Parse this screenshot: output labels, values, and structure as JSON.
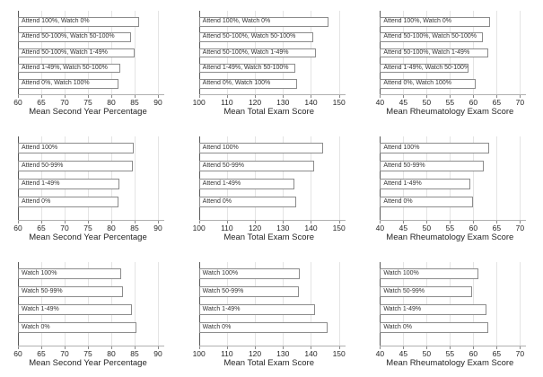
{
  "figure_title": "",
  "colors": {
    "background": "#ffffff",
    "bar_fill": "#ffffff",
    "bar_border": "#8c8c8c",
    "gridline": "#e4e4e4",
    "axis_y": "#595959",
    "axis_x": "#b0b0b0",
    "text": "#262626"
  },
  "chart_data": [
    {
      "type": "bar",
      "orientation": "horizontal",
      "xlabel": "Mean Second Year Percentage",
      "xlim": [
        60,
        90
      ],
      "ticks": [
        60,
        65,
        70,
        75,
        80,
        85,
        90
      ],
      "grid": true,
      "categories": [
        "Attend 100%, Watch 0%",
        "Attend 50-100%, Watch 50-100%",
        "Attend 50-100%, Watch 1-49%",
        "Attend 1-49%, Watch 50-100%",
        "Attend 0%, Watch 100%"
      ],
      "values": [
        86,
        84.3,
        85,
        82,
        81.6
      ]
    },
    {
      "type": "bar",
      "orientation": "horizontal",
      "xlabel": "Mean Total Exam Score",
      "xlim": [
        100,
        150
      ],
      "ticks": [
        100,
        110,
        120,
        130,
        140,
        150
      ],
      "grid": true,
      "categories": [
        "Attend 100%, Watch 0%",
        "Attend 50-100%, Watch 50-100%",
        "Attend 50-100%, Watch 1-49%",
        "Attend 1-49%, Watch 50-100%",
        "Attend 0%, Watch 100%"
      ],
      "values": [
        146.4,
        140.7,
        141.9,
        134.3,
        134.9
      ]
    },
    {
      "type": "bar",
      "orientation": "horizontal",
      "xlabel": "Mean Rheumatology Exam Score",
      "xlim": [
        40,
        70
      ],
      "ticks": [
        40,
        45,
        50,
        55,
        60,
        65,
        70
      ],
      "grid": true,
      "categories": [
        "Attend 100%, Watch 0%",
        "Attend 50-100%, Watch 50-100%",
        "Attend 50-100%, Watch 1-49%",
        "Attend 1-49%, Watch 50-100%",
        "Attend 0%, Watch 100%"
      ],
      "values": [
        63.5,
        62,
        63.3,
        59,
        60.5
      ]
    },
    {
      "type": "bar",
      "orientation": "horizontal",
      "xlabel": "Mean Second Year Percentage",
      "xlim": [
        60,
        90
      ],
      "ticks": [
        60,
        65,
        70,
        75,
        80,
        85,
        90
      ],
      "grid": true,
      "categories": [
        "Attend 100%",
        "Attend 50-99%",
        "Attend 1-49%",
        "Attend 0%"
      ],
      "values": [
        84.9,
        84.6,
        81.7,
        81.5
      ]
    },
    {
      "type": "bar",
      "orientation": "horizontal",
      "xlabel": "Mean Total Exam Score",
      "xlim": [
        100,
        150
      ],
      "ticks": [
        100,
        110,
        120,
        130,
        140,
        150
      ],
      "grid": true,
      "categories": [
        "Attend 100%",
        "Attend 50-99%",
        "Attend 1-49%",
        "Attend 0%"
      ],
      "values": [
        144.5,
        141,
        134,
        134.6
      ]
    },
    {
      "type": "bar",
      "orientation": "horizontal",
      "xlabel": "Mean Rheumatology Exam Score",
      "xlim": [
        40,
        70
      ],
      "ticks": [
        40,
        45,
        50,
        55,
        60,
        65,
        70
      ],
      "grid": true,
      "categories": [
        "Attend 100%",
        "Attend 50-99%",
        "Attend 1-49%",
        "Attend 0%"
      ],
      "values": [
        63.4,
        62.3,
        59.4,
        60
      ]
    },
    {
      "type": "bar",
      "orientation": "horizontal",
      "xlabel": "Mean Second Year Percentage",
      "xlim": [
        60,
        90
      ],
      "ticks": [
        60,
        65,
        70,
        75,
        80,
        85,
        90
      ],
      "grid": true,
      "categories": [
        "Watch 100%",
        "Watch 50-99%",
        "Watch 1-49%",
        "Watch 0%"
      ],
      "values": [
        82.1,
        82.5,
        84.5,
        85.4
      ]
    },
    {
      "type": "bar",
      "orientation": "horizontal",
      "xlabel": "Mean Total Exam Score",
      "xlim": [
        100,
        150
      ],
      "ticks": [
        100,
        110,
        120,
        130,
        140,
        150
      ],
      "grid": true,
      "categories": [
        "Watch 100%",
        "Watch 50-99%",
        "Watch 1-49%",
        "Watch 0%"
      ],
      "values": [
        136.1,
        135.8,
        141.3,
        146
      ]
    },
    {
      "type": "bar",
      "orientation": "horizontal",
      "xlabel": "Mean Rheumatology Exam Score",
      "xlim": [
        40,
        70
      ],
      "ticks": [
        40,
        45,
        50,
        55,
        60,
        65,
        70
      ],
      "grid": true,
      "categories": [
        "Watch 100%",
        "Watch 50-99%",
        "Watch 1-49%",
        "Watch 0%"
      ],
      "values": [
        61.1,
        59.7,
        62.8,
        63.2
      ]
    }
  ]
}
